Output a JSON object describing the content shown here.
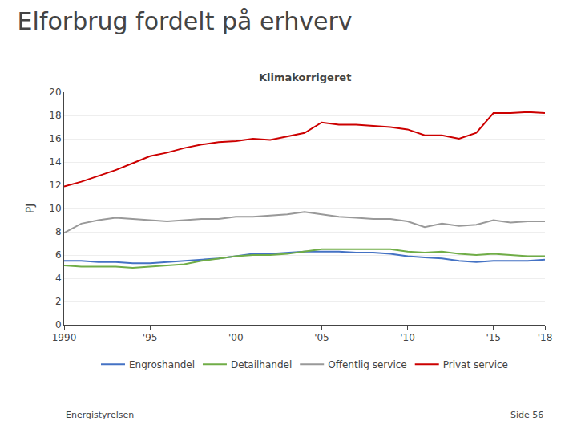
{
  "chart_data": {
    "type": "line",
    "title": "Elforbrug fordelt på erhverv",
    "subtitle": "Klimakorrigeret",
    "y_label": "PJ",
    "annotations": [
      "Energistyrelsen",
      "Side 56"
    ],
    "x": [
      1990,
      1991,
      1992,
      1993,
      1994,
      1995,
      1996,
      1997,
      1998,
      1999,
      2000,
      2001,
      2002,
      2003,
      2004,
      2005,
      2006,
      2007,
      2008,
      2009,
      2010,
      2011,
      2012,
      2013,
      2014,
      2015,
      2016,
      2017,
      2018
    ],
    "series": [
      {
        "name": "Engroshandel",
        "color": "#4472c4",
        "values": [
          5.5,
          5.5,
          5.4,
          5.4,
          5.3,
          5.3,
          5.4,
          5.5,
          5.6,
          5.7,
          5.9,
          6.1,
          6.1,
          6.2,
          6.3,
          6.3,
          6.3,
          6.2,
          6.2,
          6.1,
          5.9,
          5.8,
          5.7,
          5.5,
          5.4,
          5.5,
          5.5,
          5.5,
          5.6
        ]
      },
      {
        "name": "Detailhandel",
        "color": "#70ad47",
        "values": [
          5.1,
          5.0,
          5.0,
          5.0,
          4.9,
          5.0,
          5.1,
          5.2,
          5.5,
          5.7,
          5.9,
          6.0,
          6.0,
          6.1,
          6.3,
          6.5,
          6.5,
          6.5,
          6.5,
          6.5,
          6.3,
          6.2,
          6.3,
          6.1,
          6.0,
          6.1,
          6.0,
          5.9,
          5.9
        ]
      },
      {
        "name": "Offentlig service",
        "color": "#999999",
        "values": [
          7.9,
          8.7,
          9.0,
          9.2,
          9.1,
          9.0,
          8.9,
          9.0,
          9.1,
          9.1,
          9.3,
          9.3,
          9.4,
          9.5,
          9.7,
          9.5,
          9.3,
          9.2,
          9.1,
          9.1,
          8.9,
          8.4,
          8.7,
          8.5,
          8.6,
          9.0,
          8.8,
          8.9,
          8.9
        ]
      },
      {
        "name": "Privat service",
        "color": "#cc0000",
        "values": [
          11.9,
          12.3,
          12.8,
          13.3,
          13.9,
          14.5,
          14.8,
          15.2,
          15.5,
          15.7,
          15.8,
          16.0,
          15.9,
          16.2,
          16.5,
          17.4,
          17.2,
          17.2,
          17.1,
          17.0,
          16.8,
          16.3,
          16.3,
          16.0,
          16.5,
          18.2,
          18.2,
          18.3,
          18.2
        ]
      }
    ],
    "xlim": [
      1990,
      2018
    ],
    "xticks": [
      1990,
      {
        "value": 1995,
        "label": "'95"
      },
      {
        "value": 2000,
        "label": "'00"
      },
      {
        "value": 2005,
        "label": "'05"
      },
      {
        "value": 2010,
        "label": "'10"
      },
      {
        "value": 2015,
        "label": "'15"
      },
      {
        "value": 2018,
        "label": "'18"
      }
    ],
    "ylim": [
      0,
      20
    ],
    "yticks": [
      0,
      2,
      4,
      6,
      8,
      10,
      12,
      14,
      16,
      18,
      20
    ],
    "grid": "y",
    "legend": "bottom"
  }
}
